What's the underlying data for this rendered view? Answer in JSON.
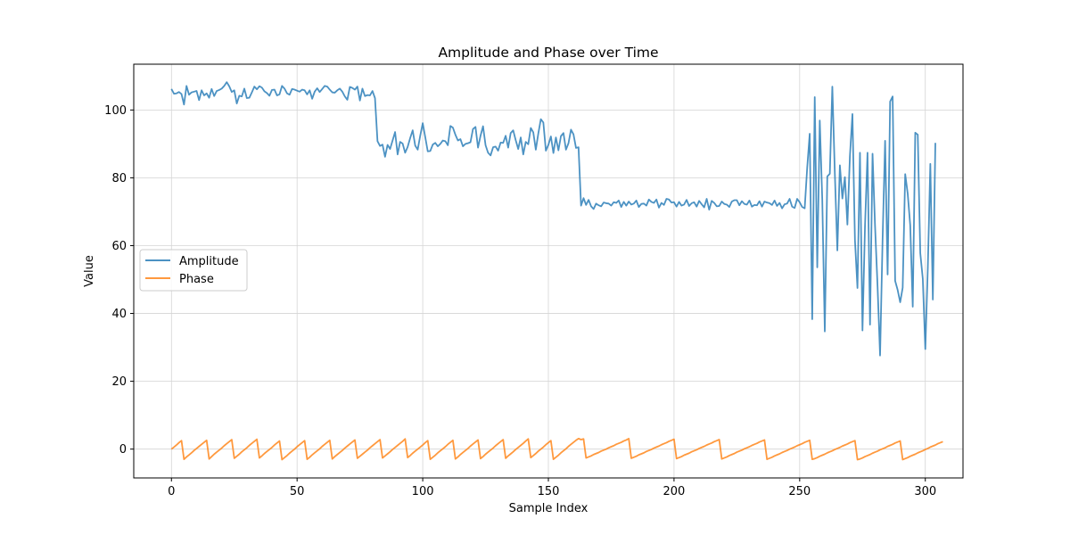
{
  "chart_data": {
    "type": "line",
    "title": "Amplitude and Phase over Time",
    "xlabel": "Sample Index",
    "ylabel": "Value",
    "xlim": [
      -15,
      315
    ],
    "ylim": [
      -8.5,
      113.5
    ],
    "xticks": [
      0,
      50,
      100,
      150,
      200,
      250,
      300
    ],
    "yticks": [
      0,
      20,
      40,
      60,
      80,
      100
    ],
    "xtick_labels": [
      "0",
      "50",
      "100",
      "150",
      "200",
      "250",
      "300"
    ],
    "ytick_labels": [
      "0",
      "20",
      "40",
      "60",
      "80",
      "100"
    ],
    "grid": true,
    "legend_position": "center-left",
    "series": [
      {
        "name": "Amplitude",
        "color": "#1f77b4",
        "values": [
          106.2,
          104.8,
          104.9,
          105.3,
          104.7,
          101.6,
          107.1,
          104.5,
          105.2,
          105.4,
          105.6,
          102.9,
          105.8,
          104.3,
          104.9,
          103.6,
          106.2,
          104.1,
          105.6,
          105.9,
          106.3,
          107.1,
          108.2,
          107.0,
          105.3,
          105.8,
          101.9,
          104.2,
          104.0,
          106.3,
          103.5,
          103.6,
          105.2,
          106.9,
          106.1,
          107.0,
          106.6,
          105.5,
          105.0,
          104.2,
          105.9,
          106.0,
          104.3,
          104.6,
          107.1,
          106.3,
          104.9,
          104.5,
          106.2,
          106.0,
          105.7,
          105.4,
          106.0,
          105.8,
          104.6,
          105.8,
          103.3,
          105.4,
          106.4,
          105.3,
          106.2,
          107.1,
          106.9,
          106.0,
          105.2,
          105.1,
          105.8,
          106.3,
          105.4,
          104.0,
          103.0,
          106.8,
          106.5,
          106.0,
          106.9,
          102.8,
          106.3,
          104.1,
          104.4,
          104.3,
          105.6,
          103.5,
          90.8,
          89.4,
          89.8,
          86.2,
          89.7,
          88.5,
          91.0,
          93.5,
          86.9,
          90.6,
          90.1,
          87.4,
          89.1,
          91.7,
          94.0,
          89.5,
          88.3,
          92.4,
          96.1,
          92.0,
          87.8,
          87.9,
          89.8,
          90.3,
          89.3,
          90.0,
          91.0,
          90.8,
          89.6,
          95.3,
          94.8,
          92.7,
          91.0,
          91.4,
          89.3,
          90.0,
          90.2,
          90.5,
          94.4,
          95.0,
          88.9,
          92.4,
          95.2,
          89.6,
          87.4,
          86.6,
          89.0,
          89.2,
          88.0,
          90.4,
          90.3,
          92.4,
          88.9,
          93.2,
          94.0,
          91.1,
          88.5,
          91.9,
          86.9,
          90.6,
          89.9,
          94.7,
          93.4,
          88.3,
          93.1,
          97.3,
          96.3,
          88.0,
          89.7,
          92.2,
          87.3,
          91.9,
          88.1,
          92.3,
          93.2,
          88.3,
          90.2,
          94.2,
          92.8,
          88.8,
          89.0,
          71.8,
          74.0,
          72.0,
          73.5,
          71.6,
          70.8,
          72.4,
          71.9,
          71.6,
          72.7,
          72.5,
          72.4,
          71.8,
          72.8,
          72.6,
          73.3,
          71.4,
          72.9,
          71.8,
          73.0,
          72.1,
          72.4,
          73.3,
          71.4,
          72.3,
          72.4,
          71.8,
          73.6,
          72.9,
          72.6,
          73.6,
          71.2,
          72.6,
          72.0,
          73.8,
          73.6,
          72.7,
          72.8,
          71.5,
          72.9,
          71.8,
          72.1,
          73.5,
          71.7,
          72.5,
          72.8,
          71.5,
          73.2,
          72.2,
          71.3,
          73.8,
          70.6,
          73.2,
          72.6,
          71.6,
          71.7,
          73.0,
          72.3,
          72.1,
          71.4,
          73.0,
          73.4,
          73.4,
          71.9,
          73.1,
          72.3,
          72.1,
          73.3,
          71.5,
          72.0,
          71.9,
          73.1,
          71.5,
          73.0,
          72.7,
          72.5,
          72.0,
          73.3,
          71.7,
          72.6,
          71.0,
          72.2,
          72.4,
          73.8,
          71.5,
          71.1,
          73.8,
          72.8,
          71.4,
          71.0,
          83.0,
          93.0,
          38.3,
          103.8,
          53.6,
          96.9,
          73.5,
          34.7,
          80.4,
          81.2,
          106.9,
          81.3,
          58.6,
          83.7,
          73.9,
          80.2,
          66.2,
          86.4,
          98.8,
          61.6,
          47.5,
          87.4,
          35.0,
          65.7,
          87.4,
          36.7,
          87.1,
          65.8,
          48.0,
          27.6,
          61.8,
          90.9,
          51.5,
          102.5,
          104.0,
          49.6,
          46.9,
          43.3,
          47.6,
          81.1,
          75.3,
          66.0,
          42.0,
          93.3,
          92.7,
          57.8,
          50.2,
          29.5,
          53.5,
          84.1,
          44.1,
          90.3
        ]
      },
      {
        "name": "Phase",
        "color": "#ff7f0e",
        "values": [
          0.0,
          0.6,
          1.2,
          1.9,
          2.5,
          -3.0,
          -2.3,
          -1.7,
          -1.1,
          -0.4,
          0.2,
          0.8,
          1.4,
          2.0,
          2.6,
          -2.9,
          -2.2,
          -1.5,
          -0.9,
          -0.3,
          0.3,
          1.0,
          1.6,
          2.2,
          2.8,
          -2.7,
          -2.1,
          -1.5,
          -0.8,
          -0.2,
          0.4,
          1.1,
          1.7,
          2.3,
          2.9,
          -2.6,
          -2.0,
          -1.3,
          -0.7,
          -0.1,
          0.5,
          1.2,
          1.8,
          2.4,
          -3.1,
          -2.5,
          -1.9,
          -1.2,
          -0.6,
          0.0,
          0.7,
          1.3,
          1.9,
          2.5,
          -3.0,
          -2.4,
          -1.7,
          -1.1,
          -0.5,
          0.1,
          0.8,
          1.4,
          2.0,
          2.6,
          -2.9,
          -2.2,
          -1.6,
          -1.0,
          -0.4,
          0.3,
          0.9,
          1.5,
          2.1,
          2.7,
          -2.7,
          -2.1,
          -1.5,
          -0.9,
          -0.3,
          0.4,
          1.0,
          1.6,
          2.2,
          2.8,
          -2.6,
          -2.0,
          -1.4,
          -0.8,
          -0.1,
          0.5,
          1.1,
          1.7,
          2.3,
          3.0,
          -2.5,
          -1.9,
          -1.2,
          -0.6,
          0.0,
          0.6,
          1.2,
          1.9,
          2.5,
          -3.0,
          -2.4,
          -1.8,
          -1.1,
          -0.5,
          0.1,
          0.7,
          1.4,
          2.0,
          2.6,
          -2.9,
          -2.3,
          -1.6,
          -1.0,
          -0.4,
          0.2,
          0.9,
          1.5,
          2.1,
          2.7,
          -2.8,
          -2.2,
          -1.5,
          -0.9,
          -0.3,
          0.3,
          1.0,
          1.6,
          2.2,
          2.8,
          -2.7,
          -2.0,
          -1.4,
          -0.8,
          -0.1,
          0.5,
          1.1,
          1.7,
          2.4,
          3.0,
          -2.5,
          -1.9,
          -1.3,
          -0.6,
          0.0,
          0.6,
          1.3,
          1.9,
          2.5,
          -3.0,
          -2.4,
          -1.8,
          -1.1,
          -0.5,
          0.1,
          0.8,
          1.4,
          2.0,
          2.6,
          3.1,
          2.8,
          3.0,
          -2.6,
          -2.3,
          -2.0,
          -1.6,
          -1.3,
          -1.0,
          -0.6,
          -0.3,
          0.0,
          0.4,
          0.7,
          1.0,
          1.4,
          1.7,
          2.0,
          2.4,
          2.7,
          3.1,
          -2.7,
          -2.4,
          -2.1,
          -1.7,
          -1.4,
          -1.1,
          -0.7,
          -0.4,
          -0.1,
          0.3,
          0.6,
          0.9,
          1.3,
          1.6,
          1.9,
          2.3,
          2.6,
          2.9,
          -2.8,
          -2.5,
          -2.2,
          -1.8,
          -1.5,
          -1.2,
          -0.8,
          -0.5,
          -0.2,
          0.2,
          0.5,
          0.8,
          1.2,
          1.5,
          1.8,
          2.2,
          2.5,
          2.8,
          -2.9,
          -2.6,
          -2.3,
          -1.9,
          -1.6,
          -1.3,
          -0.9,
          -0.6,
          -0.3,
          0.1,
          0.4,
          0.7,
          1.1,
          1.4,
          1.7,
          2.1,
          2.4,
          2.7,
          -3.0,
          -2.7,
          -2.4,
          -2.0,
          -1.7,
          -1.4,
          -1.0,
          -0.7,
          -0.4,
          0.0,
          0.3,
          0.6,
          1.0,
          1.3,
          1.6,
          2.0,
          2.3,
          2.6,
          -3.0,
          -2.8,
          -2.5,
          -2.1,
          -1.8,
          -1.5,
          -1.1,
          -0.8,
          -0.5,
          -0.1,
          0.2,
          0.5,
          0.9,
          1.2,
          1.5,
          1.9,
          2.2,
          2.5,
          -3.1,
          -2.9,
          -2.6,
          -2.2,
          -1.9,
          -1.6,
          -1.2,
          -0.9,
          -0.6,
          -0.2,
          0.1,
          0.4,
          0.8,
          1.1,
          1.4,
          1.8,
          2.1,
          2.4,
          -3.1,
          -2.8,
          -2.5,
          -2.1,
          -1.8,
          -1.5,
          -1.1,
          -0.8,
          -0.5,
          -0.1,
          0.2,
          0.6,
          0.9,
          1.2,
          1.6,
          1.9,
          2.2
        ]
      }
    ]
  }
}
